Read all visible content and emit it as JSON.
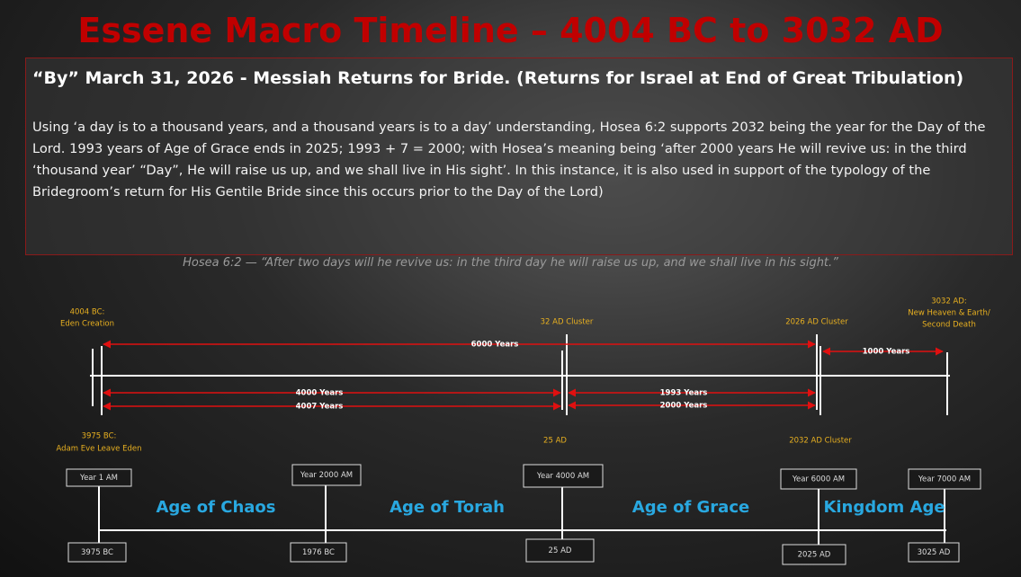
{
  "title": "Essene Macro Timeline – 4004 BC to 3032 AD",
  "heading": "“By” March 31, 2026 - Messiah Returns for Bride. (Returns for Israel at End of Great Tribulation)",
  "paragraph": "Using ‘a day is to a thousand years, and a thousand years is to a day’ understanding, Hosea 6:2 supports 2032 being the year for the Day of the Lord. 1993 years of Age of Grace ends in 2025; 1993 + 7 = 2000; with Hosea’s meaning being ‘after 2000 years He will revive us: in the third ‘thousand year’ “Day”, He will raise us up, and we shall live in His sight’. In this instance, it is also used in support of the typology of the Bridegroom’s return for His Gentile Bride since this occurs prior to the Day of the Lord)",
  "quote": "Hosea 6:2 — “After two days will he revive us: in the third day he will raise us up, and we shall live in his sight.”",
  "top_labels": [
    [
      "4004 BC:",
      "Eden Creation"
    ],
    [
      "32 AD Cluster"
    ],
    [
      "2026 AD Cluster"
    ],
    [
      "3032 AD:",
      "New Heaven & Earth/",
      "Second Death"
    ]
  ],
  "bottom_labels": [
    [
      "3975 BC:",
      "Adam Eve Leave Eden"
    ],
    [
      "25 AD"
    ],
    [
      "2032 AD Cluster"
    ]
  ],
  "spans": [
    "6000 Years",
    "1000 Years",
    "4000 Years",
    "4007 Years",
    "1993 Years",
    "2000 Years"
  ],
  "year_boxes": [
    "Year 1 AM",
    "Year 2000 AM",
    "Year 4000 AM",
    "Year 6000 AM",
    "Year 7000 AM"
  ],
  "date_boxes": [
    "3975 BC",
    "1976 BC",
    "25 AD",
    "2025 AD",
    "3025 AD"
  ],
  "ages": [
    "Age of Chaos",
    "Age of Torah",
    "Age of Grace",
    "Kingdom Age"
  ]
}
